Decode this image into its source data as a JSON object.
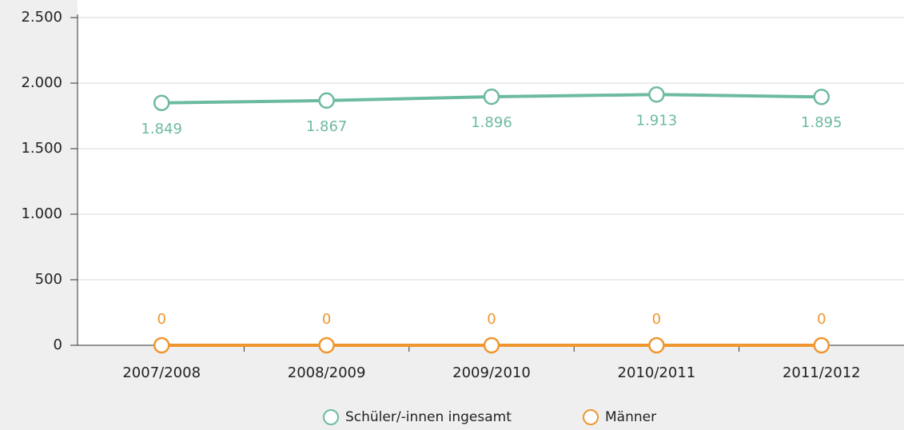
{
  "chart_data": {
    "type": "line",
    "categories": [
      "2007/2008",
      "2008/2009",
      "2009/2010",
      "2010/2011",
      "2011/2012"
    ],
    "series": [
      {
        "name": "Schüler/-innen ingesamt",
        "color": "#6dbb9f",
        "values": [
          1849,
          1867,
          1896,
          1913,
          1895
        ],
        "value_labels": [
          "1.849",
          "1.867",
          "1.896",
          "1.913",
          "1.895"
        ]
      },
      {
        "name": "Männer",
        "color": "#f0962e",
        "values": [
          0,
          0,
          0,
          0,
          0
        ]
      }
    ],
    "ylim": [
      0,
      2500
    ],
    "yticks": [
      0,
      500,
      {
        "value": 1000,
        "label": "1.000"
      },
      {
        "value": 1500,
        "label": "1.500"
      },
      {
        "value": 2000,
        "label": "2.000"
      },
      {
        "value": 2500,
        "label": "2.500"
      }
    ],
    "grid": true,
    "legend": "bottom"
  }
}
